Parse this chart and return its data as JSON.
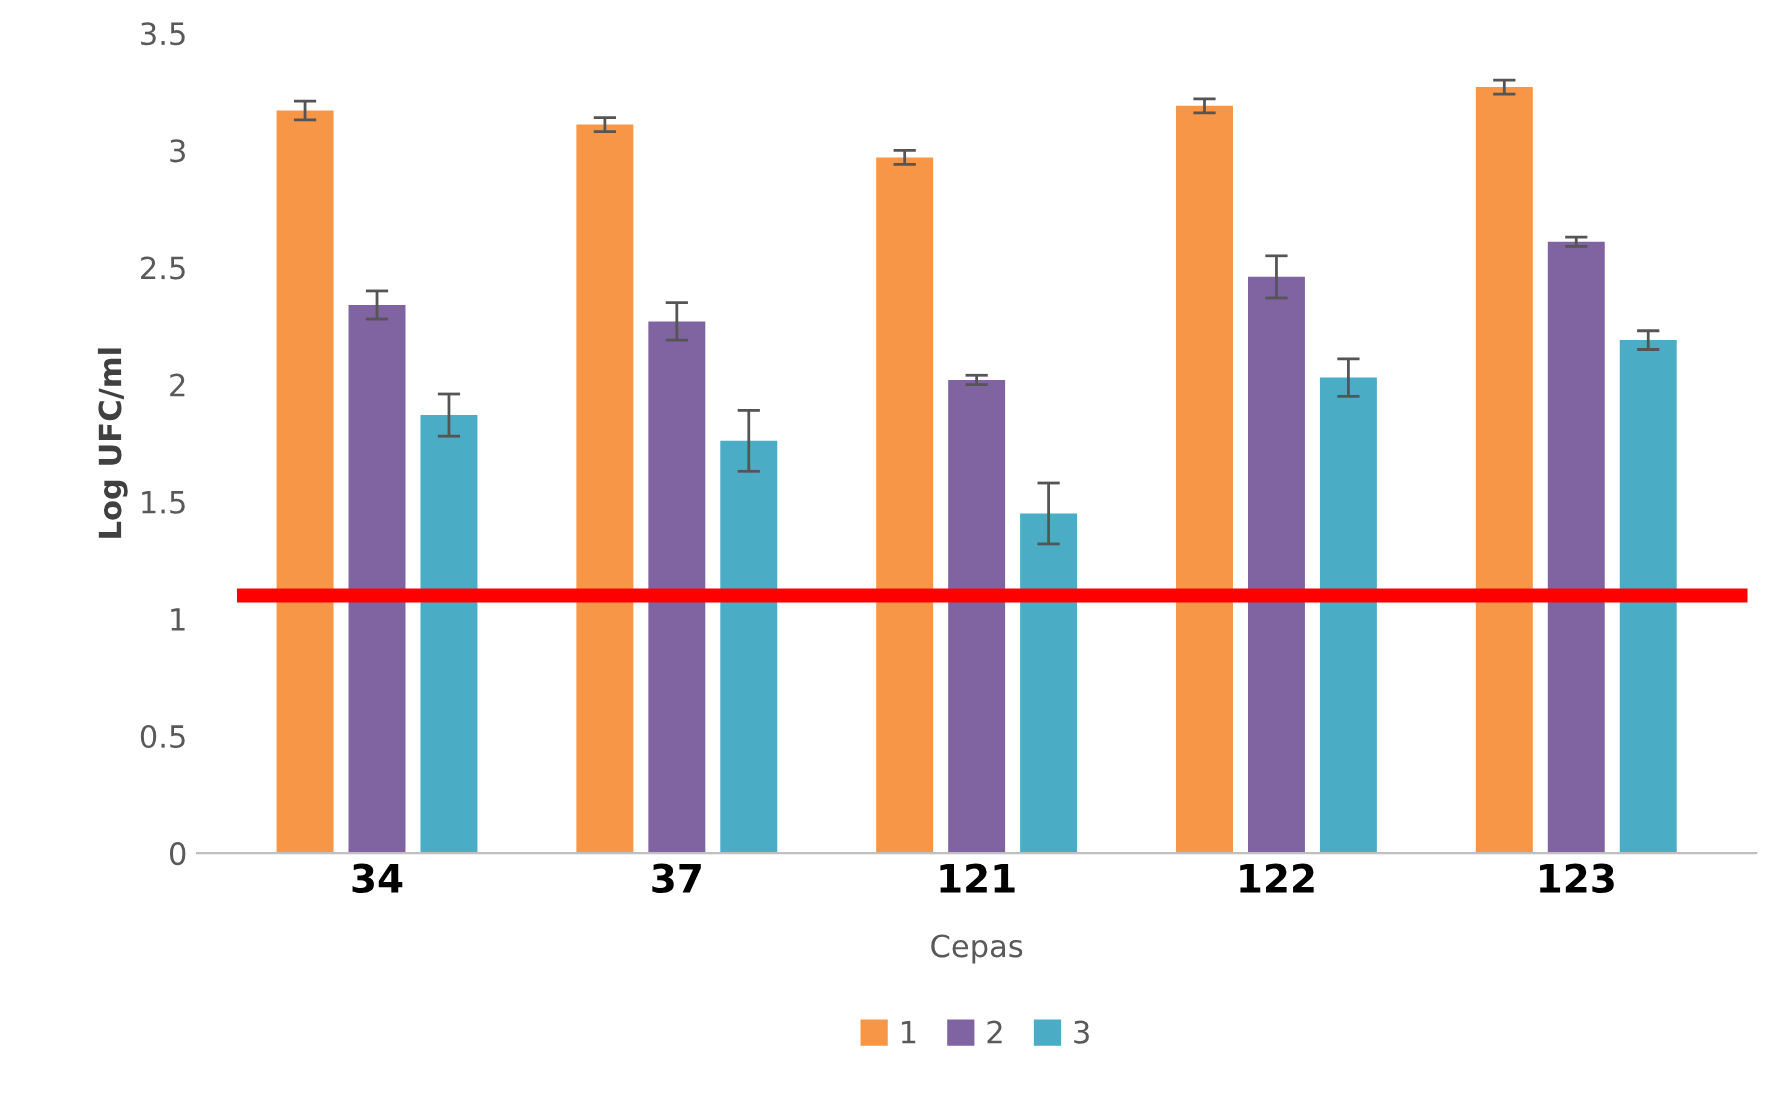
{
  "chart_data": {
    "type": "bar",
    "xlabel": "Cepas",
    "ylabel": "Log UFC/ml",
    "categories": [
      "34",
      "37",
      "121",
      "122",
      "123"
    ],
    "series": [
      {
        "name": "1",
        "color": "#f79646",
        "values": [
          3.17,
          3.11,
          2.97,
          3.19,
          3.27
        ],
        "errors": [
          0.04,
          0.03,
          0.03,
          0.03,
          0.03
        ]
      },
      {
        "name": "2",
        "color": "#8064a2",
        "values": [
          2.34,
          2.27,
          2.02,
          2.46,
          2.61
        ],
        "errors": [
          0.06,
          0.08,
          0.02,
          0.09,
          0.02
        ]
      },
      {
        "name": "3",
        "color": "#4bacc6",
        "values": [
          1.87,
          1.76,
          1.45,
          2.03,
          2.19
        ],
        "errors": [
          0.09,
          0.13,
          0.13,
          0.08,
          0.04
        ]
      }
    ],
    "ylim": [
      0,
      3.5
    ],
    "yticks": [
      0,
      0.5,
      1,
      1.5,
      2,
      2.5,
      3,
      3.5
    ],
    "ref_lines": [
      {
        "axis": "y",
        "value": 1.1,
        "color": "#ff0000",
        "line_style": "solid"
      }
    ],
    "grid": false,
    "legend": "bottom"
  }
}
